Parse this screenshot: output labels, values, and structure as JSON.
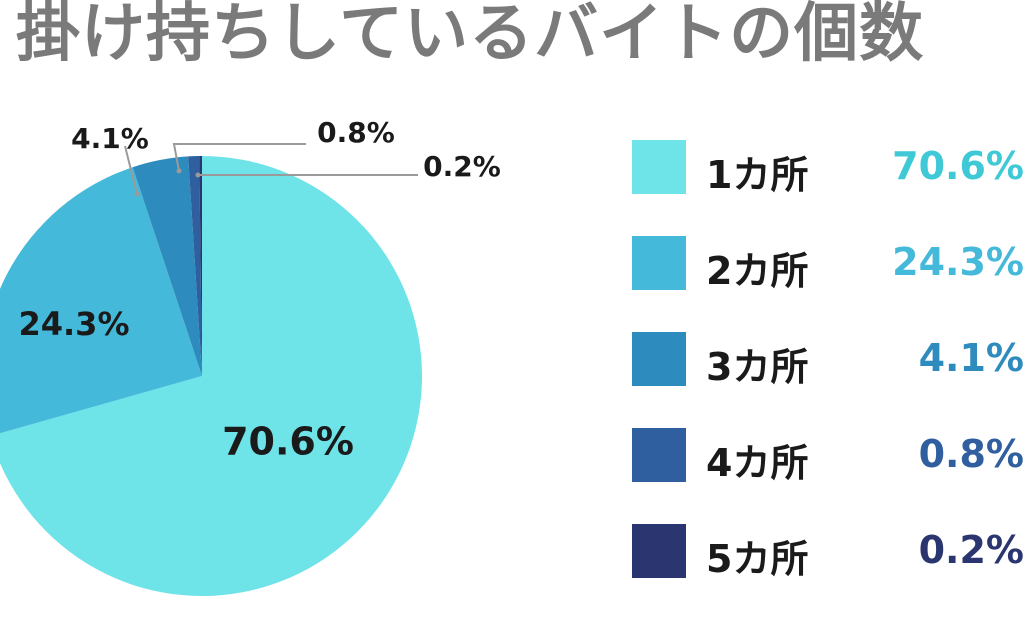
{
  "chart_data": {
    "type": "pie",
    "title": "掛け持ちしているバイトの個数",
    "categories": [
      "1カ所",
      "2カ所",
      "3カ所",
      "4カ所",
      "5カ所"
    ],
    "values": [
      70.6,
      24.3,
      4.1,
      0.8,
      0.2
    ],
    "value_labels": [
      "70.6%",
      "24.3%",
      "4.1%",
      "0.8%",
      "0.2%"
    ],
    "colors": [
      "#6ee3e8",
      "#45b9d9",
      "#2e8bbd",
      "#2f5f9e",
      "#2b3670"
    ],
    "legend_placement": "right"
  }
}
